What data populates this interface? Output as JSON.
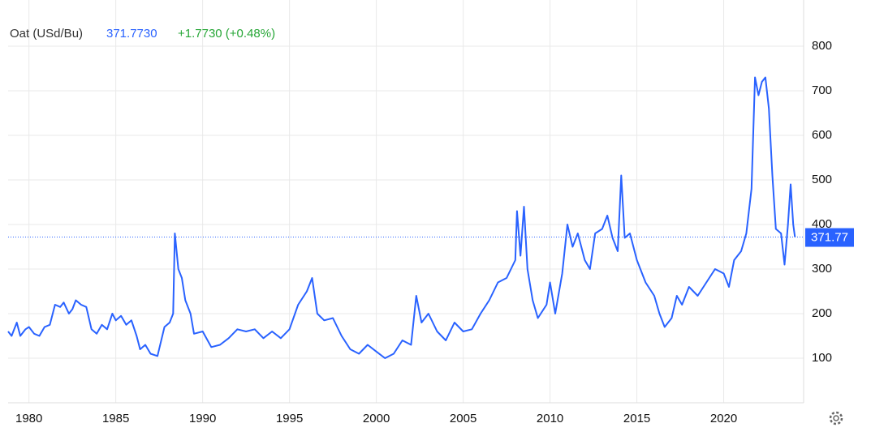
{
  "chart_data": {
    "type": "line",
    "title": "Oat (USd/Bu)",
    "price": "371.7730",
    "change": "+1.7730 (+0.48%)",
    "last_value": 371.77,
    "xlim": [
      1978.8,
      2024.6
    ],
    "ylim": [
      0,
      900
    ],
    "xticks": [
      1980,
      1985,
      1990,
      1995,
      2000,
      2005,
      2010,
      2015,
      2020
    ],
    "yticks": [
      100,
      200,
      300,
      400,
      500,
      600,
      700,
      800
    ],
    "grid": true,
    "x": [
      1978.8,
      1979.0,
      1979.3,
      1979.5,
      1979.8,
      1980.0,
      1980.3,
      1980.6,
      1980.9,
      1981.2,
      1981.5,
      1981.8,
      1982.0,
      1982.3,
      1982.5,
      1982.7,
      1983.0,
      1983.3,
      1983.6,
      1983.9,
      1984.2,
      1984.5,
      1984.8,
      1985.0,
      1985.3,
      1985.6,
      1985.9,
      1986.2,
      1986.4,
      1986.7,
      1987.0,
      1987.4,
      1987.8,
      1988.1,
      1988.3,
      1988.4,
      1988.6,
      1988.8,
      1989.0,
      1989.3,
      1989.5,
      1990.0,
      1990.5,
      1991.0,
      1991.5,
      1992.0,
      1992.5,
      1993.0,
      1993.5,
      1994.0,
      1994.5,
      1995.0,
      1995.5,
      1996.0,
      1996.3,
      1996.6,
      1997.0,
      1997.5,
      1998.0,
      1998.5,
      1999.0,
      1999.5,
      2000.0,
      2000.5,
      2001.0,
      2001.5,
      2002.0,
      2002.3,
      2002.6,
      2003.0,
      2003.5,
      2004.0,
      2004.5,
      2005.0,
      2005.5,
      2006.0,
      2006.5,
      2007.0,
      2007.5,
      2008.0,
      2008.1,
      2008.3,
      2008.5,
      2008.7,
      2009.0,
      2009.3,
      2009.8,
      2010.0,
      2010.3,
      2010.7,
      2011.0,
      2011.3,
      2011.6,
      2012.0,
      2012.3,
      2012.6,
      2013.0,
      2013.3,
      2013.6,
      2013.9,
      2014.1,
      2014.3,
      2014.6,
      2015.0,
      2015.5,
      2016.0,
      2016.3,
      2016.6,
      2017.0,
      2017.3,
      2017.6,
      2018.0,
      2018.5,
      2019.0,
      2019.5,
      2020.0,
      2020.3,
      2020.6,
      2021.0,
      2021.3,
      2021.6,
      2021.8,
      2022.0,
      2022.2,
      2022.4,
      2022.6,
      2022.8,
      2023.0,
      2023.3,
      2023.5,
      2023.7,
      2023.85,
      2024.0,
      2024.1
    ],
    "series": [
      {
        "name": "Oat",
        "color": "#2962ff",
        "values": [
          160,
          150,
          180,
          150,
          165,
          170,
          155,
          150,
          170,
          175,
          220,
          215,
          225,
          200,
          210,
          230,
          220,
          215,
          165,
          155,
          175,
          165,
          200,
          185,
          195,
          175,
          185,
          150,
          120,
          130,
          110,
          105,
          170,
          180,
          200,
          380,
          300,
          280,
          230,
          200,
          155,
          160,
          125,
          130,
          145,
          165,
          160,
          165,
          145,
          160,
          145,
          165,
          220,
          250,
          280,
          200,
          185,
          190,
          150,
          120,
          110,
          130,
          115,
          100,
          110,
          140,
          130,
          240,
          180,
          200,
          160,
          140,
          180,
          160,
          165,
          200,
          230,
          270,
          280,
          320,
          430,
          330,
          440,
          300,
          230,
          190,
          220,
          270,
          200,
          290,
          400,
          350,
          380,
          320,
          300,
          380,
          390,
          420,
          370,
          340,
          510,
          370,
          380,
          320,
          270,
          240,
          200,
          170,
          190,
          240,
          220,
          260,
          240,
          270,
          300,
          290,
          260,
          320,
          340,
          380,
          480,
          730,
          690,
          720,
          730,
          660,
          510,
          390,
          380,
          310,
          400,
          490,
          400,
          371.77
        ]
      }
    ]
  }
}
